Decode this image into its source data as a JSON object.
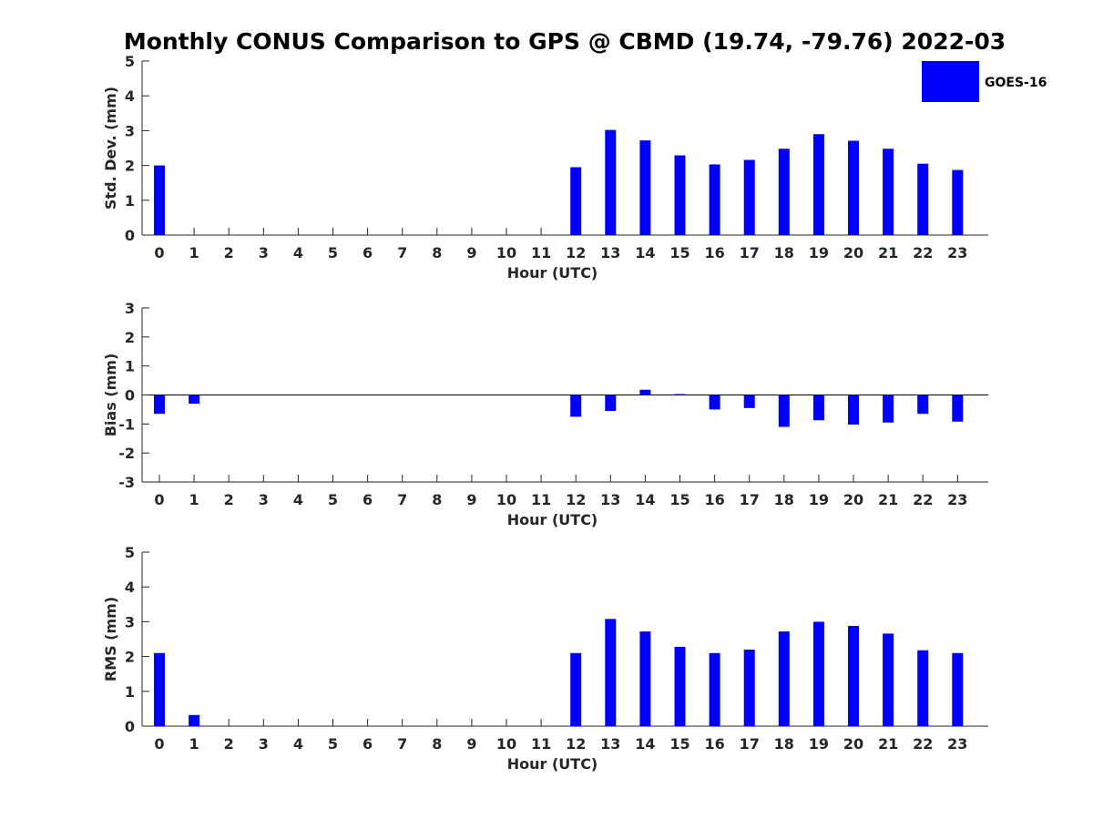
{
  "title": "Monthly CONUS Comparison to GPS @ CBMD (19.74, -79.76) 2022-03",
  "legend": {
    "label": "GOES-16",
    "color": "#0000ff",
    "placement": "top-right"
  },
  "chart_data": [
    {
      "type": "bar",
      "name": "std",
      "xlabel": "Hour (UTC)",
      "ylabel": "Std. Dev. (mm)",
      "categories": [
        "0",
        "1",
        "2",
        "3",
        "4",
        "5",
        "6",
        "7",
        "8",
        "9",
        "10",
        "11",
        "12",
        "13",
        "14",
        "15",
        "16",
        "17",
        "18",
        "19",
        "20",
        "21",
        "22",
        "23"
      ],
      "yticks": [
        "0",
        "1",
        "2",
        "3",
        "4",
        "5"
      ],
      "ylim": [
        0,
        5
      ],
      "grid": false,
      "series": [
        {
          "name": "GOES-16",
          "color": "#0000ff",
          "values": [
            2.0,
            null,
            null,
            null,
            null,
            null,
            null,
            null,
            null,
            null,
            null,
            null,
            1.95,
            3.02,
            2.72,
            2.29,
            2.03,
            2.16,
            2.48,
            2.9,
            2.71,
            2.48,
            2.05,
            1.87
          ]
        }
      ]
    },
    {
      "type": "bar",
      "name": "bias",
      "xlabel": "Hour (UTC)",
      "ylabel": "Bias (mm)",
      "categories": [
        "0",
        "1",
        "2",
        "3",
        "4",
        "5",
        "6",
        "7",
        "8",
        "9",
        "10",
        "11",
        "12",
        "13",
        "14",
        "15",
        "16",
        "17",
        "18",
        "19",
        "20",
        "21",
        "22",
        "23"
      ],
      "yticks": [
        "-3",
        "-2",
        "-1",
        "0",
        "1",
        "2",
        "3"
      ],
      "ylim": [
        -3,
        3
      ],
      "zero_line": true,
      "grid": false,
      "series": [
        {
          "name": "GOES-16",
          "color": "#0000ff",
          "values": [
            -0.65,
            -0.3,
            null,
            null,
            null,
            null,
            null,
            null,
            null,
            null,
            null,
            null,
            -0.75,
            -0.55,
            0.18,
            0.03,
            -0.5,
            -0.45,
            -1.1,
            -0.87,
            -1.02,
            -0.95,
            -0.65,
            -0.92
          ]
        }
      ]
    },
    {
      "type": "bar",
      "name": "rms",
      "xlabel": "Hour (UTC)",
      "ylabel": "RMS (mm)",
      "categories": [
        "0",
        "1",
        "2",
        "3",
        "4",
        "5",
        "6",
        "7",
        "8",
        "9",
        "10",
        "11",
        "12",
        "13",
        "14",
        "15",
        "16",
        "17",
        "18",
        "19",
        "20",
        "21",
        "22",
        "23"
      ],
      "yticks": [
        "0",
        "1",
        "2",
        "3",
        "4",
        "5"
      ],
      "ylim": [
        0,
        5
      ],
      "grid": false,
      "series": [
        {
          "name": "GOES-16",
          "color": "#0000ff",
          "values": [
            2.1,
            0.32,
            null,
            null,
            null,
            null,
            null,
            null,
            null,
            null,
            null,
            null,
            2.1,
            3.08,
            2.72,
            2.28,
            2.1,
            2.2,
            2.72,
            3.0,
            2.88,
            2.66,
            2.18,
            2.1
          ]
        }
      ]
    }
  ]
}
